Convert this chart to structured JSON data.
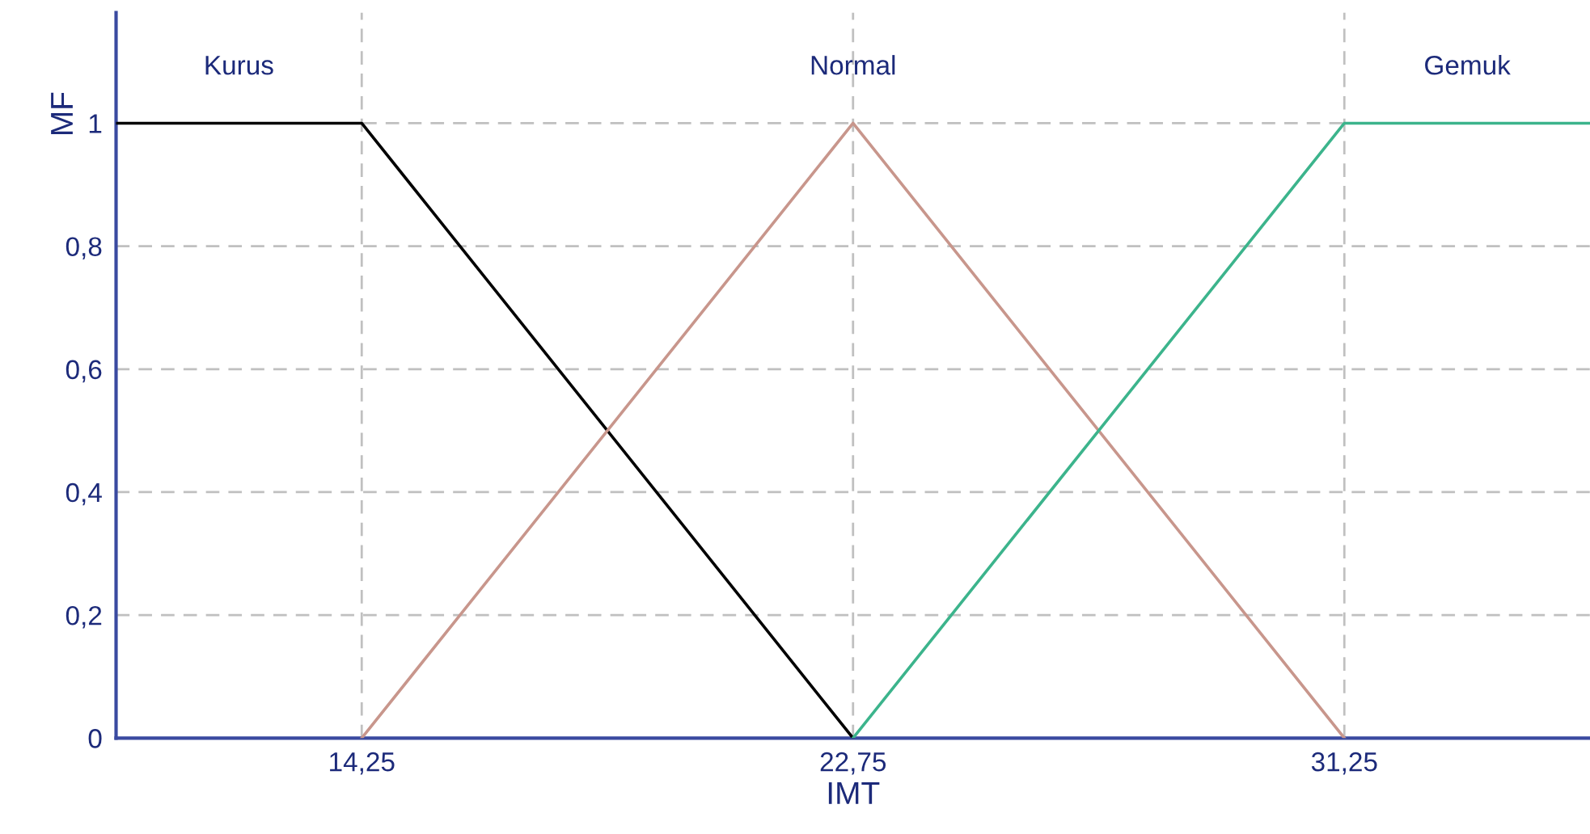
{
  "chart_data": {
    "type": "line",
    "xlabel": "IMT",
    "ylabel": "MF",
    "xlim": [
      10,
      35.5
    ],
    "ylim": [
      0,
      1.18
    ],
    "xticks": [
      {
        "value": 14.25,
        "label": "14,25"
      },
      {
        "value": 22.75,
        "label": "22,75"
      },
      {
        "value": 31.25,
        "label": "31,25"
      }
    ],
    "yticks": [
      0,
      {
        "value": 0.2,
        "label": "0,2"
      },
      {
        "value": 0.4,
        "label": "0,4"
      },
      {
        "value": 0.6,
        "label": "0,6"
      },
      {
        "value": 0.8,
        "label": "0,8"
      },
      1
    ],
    "grid": true,
    "line_style": "solid",
    "marker": "none",
    "series": [
      {
        "name": "Kurus",
        "color": "#000000",
        "x": [
          10,
          14.25,
          22.75
        ],
        "values": [
          1,
          1,
          0
        ]
      },
      {
        "name": "Normal",
        "color": "#c8968c",
        "x": [
          14.25,
          22.75,
          31.25
        ],
        "values": [
          0,
          1,
          0
        ]
      },
      {
        "name": "Gemuk",
        "color": "#3cb48c",
        "x": [
          22.75,
          31.25,
          35.5
        ],
        "values": [
          0,
          1,
          1
        ]
      }
    ]
  }
}
